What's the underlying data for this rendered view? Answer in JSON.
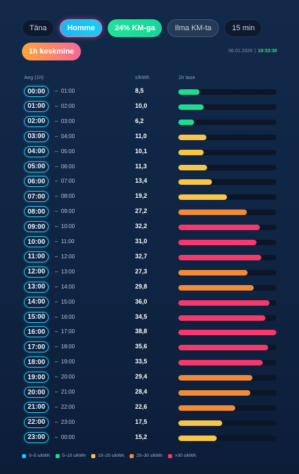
{
  "tabs": [
    {
      "label": "Täna",
      "style": "p-dark"
    },
    {
      "label": "Homme",
      "style": "p-cyan"
    },
    {
      "label": "24% KM-ga",
      "style": "p-green"
    },
    {
      "label": "Ilma KM-ta",
      "style": "p-gray"
    },
    {
      "label": "15 min",
      "style": "p-dark"
    }
  ],
  "interval_button": {
    "label": "1h keskmine"
  },
  "stamp": {
    "date": "06.01.2026",
    "separator": "|",
    "time": "19:33:30"
  },
  "headers": {
    "period": "Aeg (1h)",
    "price": "s/kWh",
    "level": "1h tase"
  },
  "scale_max": 38.8,
  "colors": {
    "cyan": "#18c5f0",
    "green": "#1fdc8c",
    "yellow": "#f8c546",
    "orange": "#f58a35",
    "red": "#f6386a"
  },
  "rows": [
    {
      "start": "00:00",
      "end": "01:00",
      "price": "8,5",
      "value": 8.5,
      "color": "green"
    },
    {
      "start": "01:00",
      "end": "02:00",
      "price": "10,0",
      "value": 10.0,
      "color": "green"
    },
    {
      "start": "02:00",
      "end": "03:00",
      "price": "6,2",
      "value": 6.2,
      "color": "green"
    },
    {
      "start": "03:00",
      "end": "04:00",
      "price": "11,0",
      "value": 11.0,
      "color": "yellow"
    },
    {
      "start": "04:00",
      "end": "05:00",
      "price": "10,1",
      "value": 10.1,
      "color": "yellow"
    },
    {
      "start": "05:00",
      "end": "06:00",
      "price": "11,3",
      "value": 11.3,
      "color": "yellow"
    },
    {
      "start": "06:00",
      "end": "07:00",
      "price": "13,4",
      "value": 13.4,
      "color": "yellow"
    },
    {
      "start": "07:00",
      "end": "08:00",
      "price": "19,2",
      "value": 19.2,
      "color": "yellow"
    },
    {
      "start": "08:00",
      "end": "09:00",
      "price": "27,2",
      "value": 27.2,
      "color": "orange"
    },
    {
      "start": "09:00",
      "end": "10:00",
      "price": "32,2",
      "value": 32.2,
      "color": "red"
    },
    {
      "start": "10:00",
      "end": "11:00",
      "price": "31,0",
      "value": 31.0,
      "color": "red"
    },
    {
      "start": "11:00",
      "end": "12:00",
      "price": "32,7",
      "value": 32.7,
      "color": "red"
    },
    {
      "start": "12:00",
      "end": "13:00",
      "price": "27,3",
      "value": 27.3,
      "color": "orange"
    },
    {
      "start": "13:00",
      "end": "14:00",
      "price": "29,8",
      "value": 29.8,
      "color": "orange"
    },
    {
      "start": "14:00",
      "end": "15:00",
      "price": "36,0",
      "value": 36.0,
      "color": "red"
    },
    {
      "start": "15:00",
      "end": "16:00",
      "price": "34,5",
      "value": 34.5,
      "color": "red"
    },
    {
      "start": "16:00",
      "end": "17:00",
      "price": "38,8",
      "value": 38.8,
      "color": "red"
    },
    {
      "start": "17:00",
      "end": "18:00",
      "price": "35,6",
      "value": 35.6,
      "color": "red"
    },
    {
      "start": "18:00",
      "end": "19:00",
      "price": "33,5",
      "value": 33.5,
      "color": "red"
    },
    {
      "start": "19:00",
      "end": "20:00",
      "price": "29,4",
      "value": 29.4,
      "color": "orange"
    },
    {
      "start": "20:00",
      "end": "21:00",
      "price": "28,4",
      "value": 28.4,
      "color": "orange"
    },
    {
      "start": "21:00",
      "end": "22:00",
      "price": "22,6",
      "value": 22.6,
      "color": "orange"
    },
    {
      "start": "22:00",
      "end": "23:00",
      "price": "17,5",
      "value": 17.5,
      "color": "yellow"
    },
    {
      "start": "23:00",
      "end": "00:00",
      "price": "15,2",
      "value": 15.2,
      "color": "yellow"
    }
  ],
  "legend": [
    {
      "label": "0–5 s/kWh",
      "color": "cyan"
    },
    {
      "label": "5–10 s/kWh",
      "color": "green"
    },
    {
      "label": "10–20 s/kWh",
      "color": "yellow"
    },
    {
      "label": "20–30 s/kWh",
      "color": "orange"
    },
    {
      "label": ">30 s/kWh",
      "color": "red"
    }
  ]
}
